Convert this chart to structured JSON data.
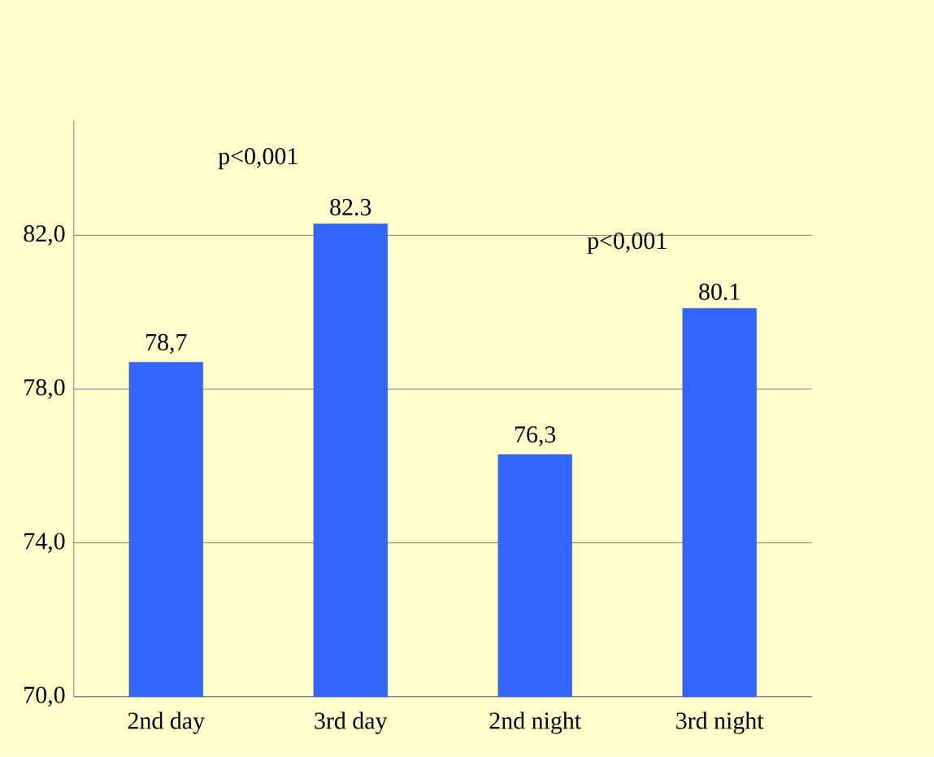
{
  "chart_data": {
    "type": "bar",
    "categories": [
      "2nd day",
      "3rd day",
      "2nd night",
      "3rd night"
    ],
    "values": [
      78.7,
      82.3,
      76.3,
      80.1
    ],
    "value_labels": [
      "78,7",
      "82.3",
      "76,3",
      "80.1"
    ],
    "color": "#3366ff",
    "ylim": [
      70,
      85
    ],
    "yticks": [
      {
        "value": 70,
        "label": "70,0"
      },
      {
        "value": 74,
        "label": "74,0"
      },
      {
        "value": 78,
        "label": "78,0"
      },
      {
        "value": 82,
        "label": "82,0"
      }
    ],
    "grid": "y",
    "annotations": [
      "p<0,001",
      "p<0,001"
    ]
  }
}
